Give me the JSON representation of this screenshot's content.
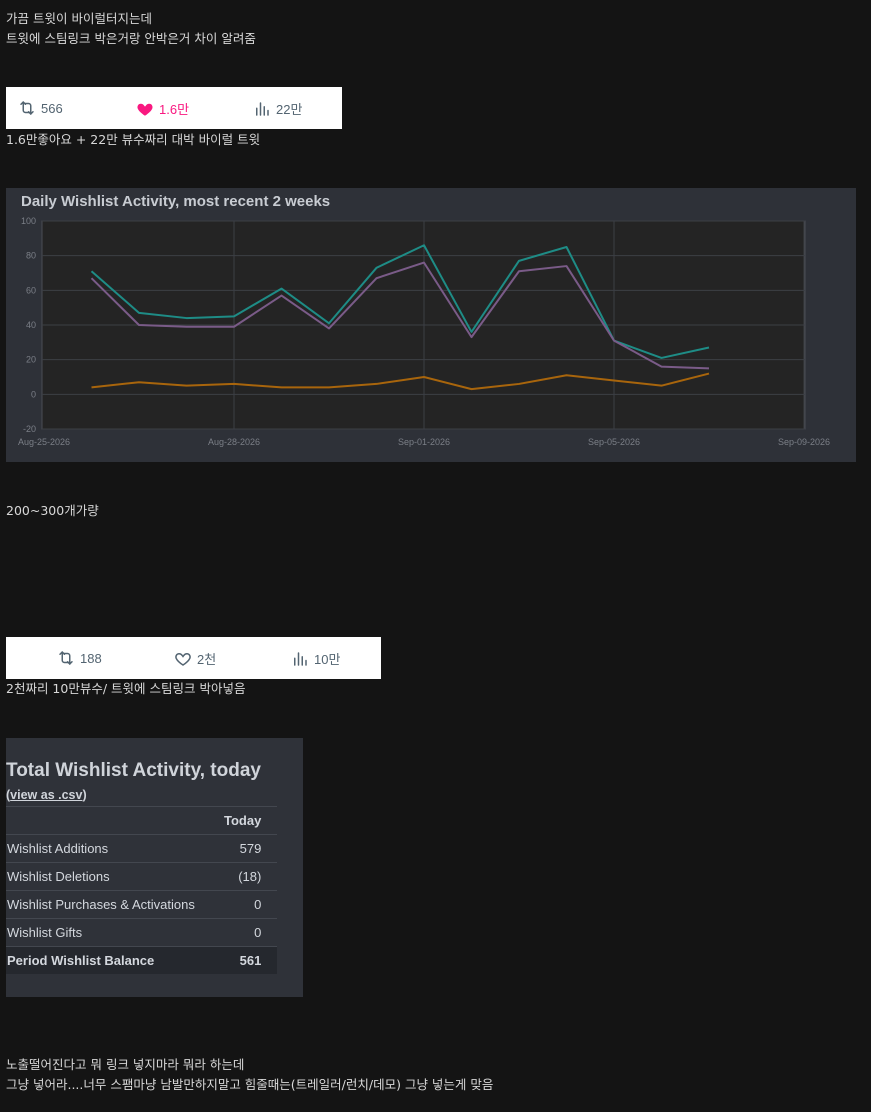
{
  "post": {
    "intro_line1": "가끔 트윗이 바이럴터지는데",
    "intro_line2": "트윗에 스팀링크 박은거랑 안박은거 차이 알려줌",
    "viral_caption": "1.6만좋아요 + 22만 뷰수짜리 대박 바이럴 트윗",
    "wishlist_caption": "200~300개가량",
    "normal_caption": "2천짜리 10만뷰수/ 트윗에 스팀링크 박아넣음",
    "outro_line1": "노출떨어진다고 뭐 링크 넣지마라 뭐라 하는데",
    "outro_line2": "그냥 넣어라....너무 스팸마냥 남발만하지말고 힘줄때는(트레일러/런치/데모) 그냥 넣는게 맞음"
  },
  "tweet1": {
    "retweets": "566",
    "likes": "1.6만",
    "views": "22만",
    "liked": true,
    "like_color": "#f91880"
  },
  "tweet2": {
    "retweets": "188",
    "likes": "2천",
    "views": "10만",
    "liked": false
  },
  "chart_data": {
    "type": "line",
    "title": "Daily Wishlist Activity, most recent 2 weeks",
    "xlabel": "",
    "ylabel": "",
    "x_ticks": [
      "Aug-25-2026",
      "Aug-28-2026",
      "Sep-01-2026",
      "Sep-05-2026",
      "Sep-09-2026"
    ],
    "y_ticks": [
      "100",
      "80",
      "60",
      "40",
      "20",
      "0",
      "-20"
    ],
    "ylim": [
      -20,
      100
    ],
    "grid": true,
    "x": [
      "Aug-26",
      "Aug-27",
      "Aug-28",
      "Aug-29",
      "Aug-30",
      "Aug-31",
      "Sep-01",
      "Sep-02",
      "Sep-03",
      "Sep-04",
      "Sep-05",
      "Sep-06",
      "Sep-07",
      "Sep-08"
    ],
    "series": [
      {
        "color": "#1e8c86",
        "values": [
          71,
          47,
          44,
          45,
          61,
          41,
          73,
          86,
          36,
          77,
          85,
          31,
          21,
          27
        ]
      },
      {
        "color": "#7a5b88",
        "values": [
          67,
          40,
          39,
          39,
          57,
          38,
          67,
          76,
          33,
          71,
          74,
          31,
          16,
          15
        ]
      },
      {
        "color": "#a8650c",
        "values": [
          4,
          7,
          5,
          6,
          4,
          4,
          6,
          10,
          3,
          6,
          11,
          8,
          5,
          12
        ]
      }
    ]
  },
  "wishlist_table": {
    "title": "Total Wishlist Activity, today",
    "csv_open": "(",
    "csv_link": "view as .csv",
    "csv_close": ")",
    "col_header": "Today",
    "rows": [
      {
        "label": "Wishlist Additions",
        "value": "579"
      },
      {
        "label": "Wishlist Deletions",
        "value": "(18)"
      },
      {
        "label": "Wishlist Purchases & Activations",
        "value": "0"
      },
      {
        "label": "Wishlist Gifts",
        "value": "0"
      }
    ],
    "balance": {
      "label": "Period Wishlist Balance",
      "value": "561"
    }
  }
}
